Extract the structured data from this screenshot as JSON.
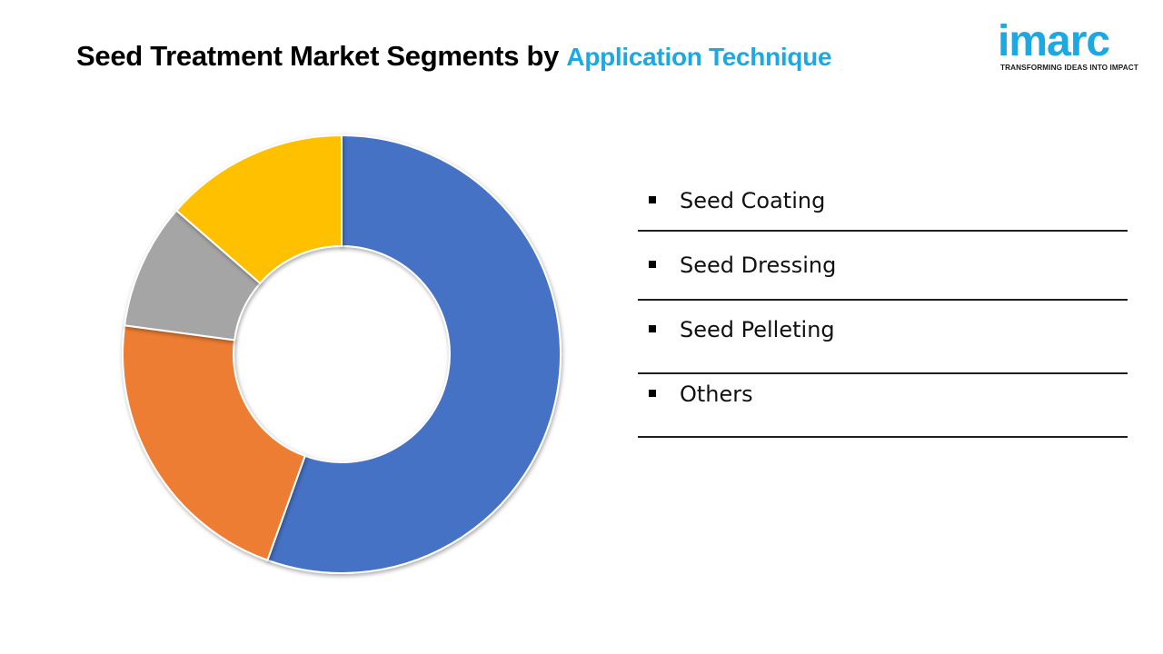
{
  "header": {
    "title_main": "Seed Treatment Market Segments by",
    "title_accent": "Application Technique"
  },
  "logo": {
    "word": "imarc",
    "tagline": "TRANSFORMING IDEAS INTO IMPACT"
  },
  "colors": {
    "accent": "#1ca8e3",
    "seed_coating": "#4472c4",
    "seed_dressing": "#ed7d31",
    "seed_pelleting": "#a5a5a5",
    "others": "#ffc000"
  },
  "chart_data": {
    "type": "pie",
    "variant": "donut",
    "categories": [
      "Seed Coating",
      "Seed Dressing",
      "Seed Pelleting",
      "Others"
    ],
    "values": [
      55.5,
      21.6,
      9.3,
      13.6
    ],
    "legend_position": "right"
  }
}
